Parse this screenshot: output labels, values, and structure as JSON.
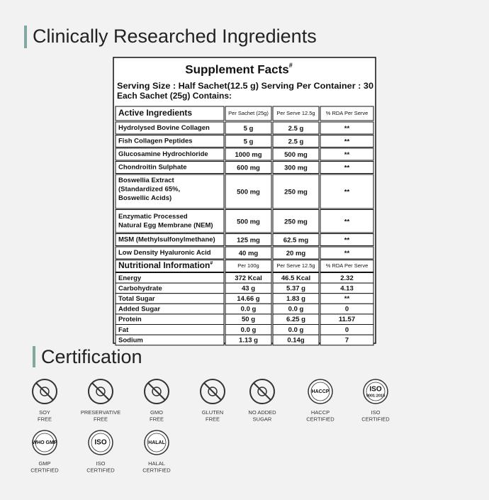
{
  "heading": "Clinically Researched Ingredients",
  "supplement_facts": {
    "title": "Supplement Facts",
    "title_mark": "#",
    "serving_line": "Serving Size : Half Sachet(12.5 g)  Serving Per Container : 30",
    "contains_line": "Each Sachet (25g) Contains:",
    "active": {
      "title": "Active Ingredients",
      "columns": [
        "Per Sachet (25g)",
        "Per Serve 12.5g",
        "% RDA Per Serve"
      ],
      "rows": [
        {
          "name": [
            "Hydrolysed Bovine Collagen"
          ],
          "values": [
            "5 g",
            "2.5 g",
            "**"
          ]
        },
        {
          "name": [
            "Fish Collagen Peptides"
          ],
          "values": [
            "5 g",
            "2.5 g",
            "**"
          ]
        },
        {
          "name": [
            "Glucosamine Hydrochloride"
          ],
          "values": [
            "1000 mg",
            "500 mg",
            "**"
          ]
        },
        {
          "name": [
            "Chondroitin Sulphate"
          ],
          "values": [
            "600 mg",
            "300 mg",
            "**"
          ]
        },
        {
          "name": [
            "Boswellia Extract",
            "(Standardized 65%,",
            "Boswellic Acids)"
          ],
          "values": [
            "500 mg",
            "250 mg",
            "**"
          ]
        },
        {
          "name": [
            "Enzymatic Processed",
            "Natural Egg Membrane (NEM)"
          ],
          "values": [
            "500 mg",
            "250 mg",
            "**"
          ]
        },
        {
          "name": [
            "MSM (Methylsulfonylmethane)"
          ],
          "values": [
            "125 mg",
            "62.5 mg",
            "**"
          ]
        },
        {
          "name": [
            "Low Density Hyaluronic Acid"
          ],
          "values": [
            "40 mg",
            "20 mg",
            "**"
          ]
        }
      ]
    },
    "nutrition": {
      "title": "Nutritional Information",
      "title_mark": "#",
      "columns": [
        "Per 100g",
        "Per Serve 12.5g",
        "% RDA Per Serve"
      ],
      "rows": [
        {
          "name": "Energy",
          "values": [
            "372 Kcal",
            "46.5 Kcal",
            "2.32"
          ]
        },
        {
          "name": "Carbohydrate",
          "values": [
            "43 g",
            "5.37 g",
            "4.13"
          ]
        },
        {
          "name": "Total Sugar",
          "values": [
            "14.66 g",
            "1.83 g",
            "**"
          ]
        },
        {
          "name": "Added Sugar",
          "values": [
            "0.0 g",
            "0.0 g",
            "0"
          ]
        },
        {
          "name": "Protein",
          "values": [
            "50 g",
            "6.25 g",
            "11.57"
          ]
        },
        {
          "name": "Fat",
          "values": [
            "0.0 g",
            "0.0 g",
            "0"
          ]
        },
        {
          "name": "Sodium",
          "values": [
            "1.13 g",
            "0.14g",
            "7"
          ]
        }
      ]
    }
  },
  "certification": {
    "title": "Certification",
    "badges": [
      {
        "label": [
          "SOY",
          "FREE"
        ]
      },
      {
        "label": [
          "PRESERVATIVE",
          "FREE"
        ]
      },
      {
        "label": [
          "GMO",
          "FREE"
        ]
      },
      {
        "label": [
          "GLUTEN",
          "FREE"
        ]
      },
      {
        "label": [
          "NO ADDED",
          "SUGAR"
        ]
      },
      {
        "label": [
          "HACCP",
          "CERTIFIED"
        ],
        "mark": [
          "HACCP"
        ]
      },
      {
        "label": [
          "ISO",
          "CERTIFIED"
        ],
        "mark": [
          "ISO",
          "9001:2015"
        ]
      },
      {
        "label": [
          "GMP",
          "CERTIFIED"
        ],
        "mark": [
          "WHO GMP"
        ]
      },
      {
        "label": [
          "ISO",
          "CERTIFIED"
        ],
        "mark": [
          "ISO"
        ]
      },
      {
        "label": [
          "HALAL",
          "CERTIFIED"
        ],
        "mark": [
          "HALAL"
        ]
      }
    ]
  }
}
